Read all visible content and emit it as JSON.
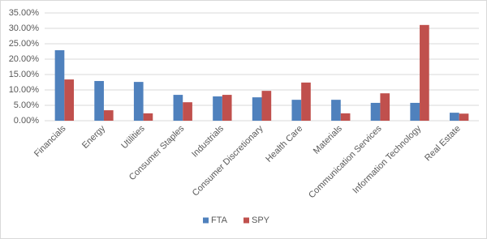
{
  "chart_data": {
    "type": "bar",
    "categories": [
      "Financials",
      "Energy",
      "Utilities",
      "Consumer Staples",
      "Industrials",
      "Consumer Discretionary",
      "Health Care",
      "Materials",
      "Communication Services",
      "Information Technology",
      "Real Estate"
    ],
    "series": [
      {
        "name": "FTA",
        "color": "#4f81bd",
        "values": [
          22.9,
          12.9,
          12.6,
          8.4,
          7.9,
          7.6,
          6.8,
          6.8,
          5.8,
          5.8,
          2.6
        ]
      },
      {
        "name": "SPY",
        "color": "#c0504d",
        "values": [
          13.4,
          3.4,
          2.4,
          6.0,
          8.4,
          9.7,
          12.4,
          2.4,
          8.9,
          31.1,
          2.3
        ]
      }
    ],
    "ylim": [
      0,
      35
    ],
    "yticks": [
      {
        "value": 0,
        "label": "0.00%"
      },
      {
        "value": 5,
        "label": "5.00%"
      },
      {
        "value": 10,
        "label": "10.00%"
      },
      {
        "value": 15,
        "label": "15.00%"
      },
      {
        "value": 20,
        "label": "20.00%"
      },
      {
        "value": 25,
        "label": "25.00%"
      },
      {
        "value": 30,
        "label": "30.00%"
      },
      {
        "value": 35,
        "label": "35.00%"
      }
    ],
    "grid": true,
    "legend": "bottom"
  }
}
